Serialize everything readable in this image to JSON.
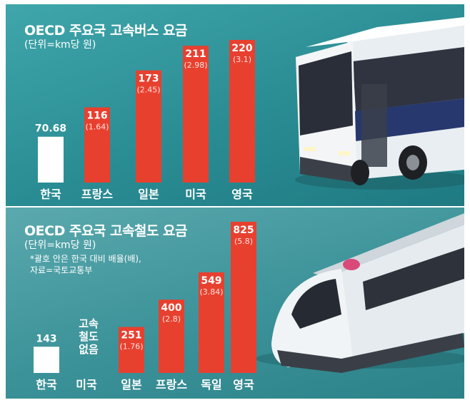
{
  "chart_data": [
    {
      "type": "bar",
      "title": "OECD 주요국 고속버스 요금",
      "subtitle": "(단위=km당 원)",
      "categories": [
        "한국",
        "프랑스",
        "일본",
        "미국",
        "영국"
      ],
      "values": [
        70.68,
        116,
        173,
        211,
        220
      ],
      "value_labels": [
        "70.68",
        "116",
        "173",
        "211",
        "220"
      ],
      "ratio_labels": [
        "",
        "(1.64)",
        "(2.45)",
        "(2.98)",
        "(3.1)"
      ],
      "ylim": [
        0,
        220
      ],
      "colors": [
        "#ffffff",
        "#e8402f",
        "#e8402f",
        "#e8402f",
        "#e8402f"
      ]
    },
    {
      "type": "bar",
      "title": "OECD 주요국 고속철도 요금",
      "subtitle": "(단위=km당 원)",
      "note": "*괄호 안은 한국 대비 배율(배),\n자료=국토교통부",
      "categories": [
        "한국",
        "미국",
        "일본",
        "프랑스",
        "독일",
        "영국"
      ],
      "values": [
        143,
        null,
        251,
        400,
        549,
        825
      ],
      "value_labels": [
        "143",
        "",
        "251",
        "400",
        "549",
        "825"
      ],
      "ratio_labels": [
        "",
        "",
        "(1.76)",
        "(2.8)",
        "(3.84)",
        "(5.8)"
      ],
      "missing_label": "고속\n철도\n없음",
      "ylim": [
        0,
        825
      ],
      "colors": [
        "#ffffff",
        "#e8402f",
        "#e8402f",
        "#e8402f",
        "#e8402f",
        "#e8402f"
      ]
    }
  ]
}
